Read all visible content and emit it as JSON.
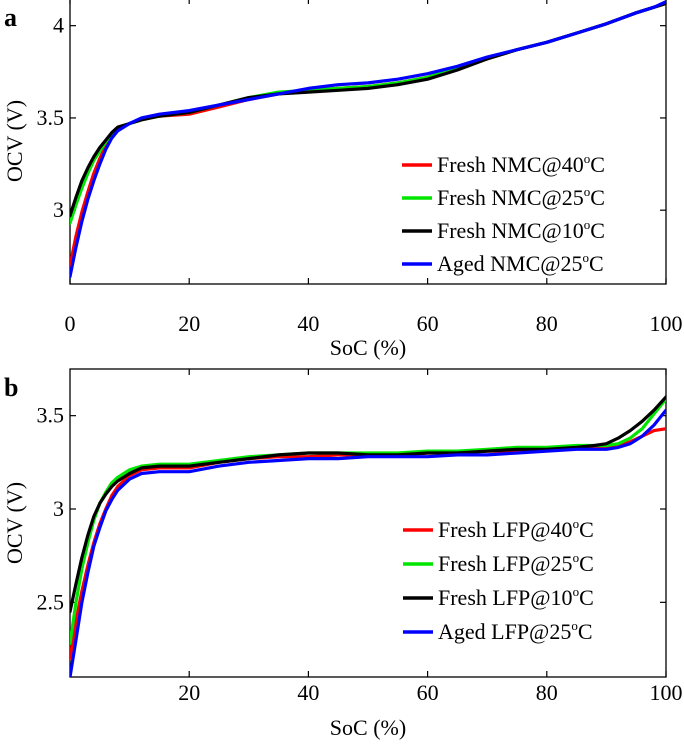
{
  "chart_data": [
    {
      "type": "line",
      "panel_label": "a",
      "xlabel": "SoC (%)",
      "ylabel": "OCV (V)",
      "xlim": [
        0,
        100
      ],
      "ylim": [
        2.6,
        4.15
      ],
      "xticks": [
        0,
        20,
        40,
        60,
        80,
        100
      ],
      "yticks": [
        3,
        3.5,
        4
      ],
      "xtick_labels": [
        "0",
        "20",
        "40",
        "60",
        "80",
        "100"
      ],
      "ytick_labels": [
        "3",
        "3.5",
        "4"
      ],
      "grid": false,
      "legend_position": "bottom-right",
      "series": [
        {
          "name": "Fresh NMC@40°C",
          "name_base": "Fresh NMC@40",
          "name_sup": "o",
          "name_tail": "C",
          "color": "#ff0000",
          "x": [
            0,
            1,
            2,
            3,
            4,
            5,
            6,
            7,
            8,
            10,
            12,
            15,
            20,
            25,
            30,
            35,
            40,
            45,
            50,
            55,
            60,
            65,
            70,
            75,
            80,
            85,
            90,
            95,
            98,
            100
          ],
          "y": [
            2.7,
            2.86,
            2.99,
            3.1,
            3.2,
            3.28,
            3.35,
            3.4,
            3.44,
            3.47,
            3.49,
            3.51,
            3.52,
            3.56,
            3.6,
            3.63,
            3.65,
            3.66,
            3.67,
            3.69,
            3.72,
            3.77,
            3.82,
            3.87,
            3.91,
            3.96,
            4.01,
            4.07,
            4.1,
            4.12
          ]
        },
        {
          "name": "Fresh NMC@25°C",
          "name_base": "Fresh NMC@25",
          "name_sup": "o",
          "name_tail": "C",
          "color": "#00e600",
          "x": [
            0,
            1,
            2,
            3,
            4,
            5,
            6,
            7,
            8,
            10,
            12,
            15,
            20,
            25,
            30,
            35,
            40,
            45,
            50,
            55,
            60,
            65,
            70,
            75,
            80,
            85,
            90,
            95,
            98,
            100
          ],
          "y": [
            2.93,
            3.03,
            3.12,
            3.2,
            3.27,
            3.32,
            3.37,
            3.41,
            3.44,
            3.47,
            3.49,
            3.51,
            3.53,
            3.57,
            3.61,
            3.64,
            3.65,
            3.66,
            3.67,
            3.69,
            3.72,
            3.77,
            3.82,
            3.87,
            3.91,
            3.96,
            4.01,
            4.07,
            4.1,
            4.12
          ]
        },
        {
          "name": "Fresh NMC@10°C",
          "name_base": "Fresh NMC@10",
          "name_sup": "o",
          "name_tail": "C",
          "color": "#000000",
          "x": [
            0,
            1,
            2,
            3,
            4,
            5,
            6,
            7,
            8,
            10,
            12,
            15,
            20,
            25,
            30,
            35,
            40,
            45,
            50,
            55,
            60,
            65,
            70,
            75,
            80,
            85,
            90,
            95,
            98,
            100
          ],
          "y": [
            2.97,
            3.07,
            3.16,
            3.23,
            3.29,
            3.34,
            3.38,
            3.42,
            3.45,
            3.47,
            3.49,
            3.51,
            3.53,
            3.57,
            3.61,
            3.63,
            3.64,
            3.65,
            3.66,
            3.68,
            3.71,
            3.76,
            3.82,
            3.87,
            3.91,
            3.96,
            4.01,
            4.07,
            4.1,
            4.12
          ]
        },
        {
          "name": "Aged NMC@25°C",
          "name_base": "Aged NMC@25",
          "name_sup": "o",
          "name_tail": "C",
          "color": "#0000ff",
          "x": [
            0,
            1,
            2,
            3,
            4,
            5,
            6,
            7,
            8,
            10,
            12,
            15,
            20,
            25,
            30,
            35,
            40,
            45,
            50,
            55,
            60,
            65,
            70,
            75,
            80,
            85,
            90,
            95,
            98,
            100
          ],
          "y": [
            2.64,
            2.8,
            2.94,
            3.06,
            3.16,
            3.25,
            3.33,
            3.39,
            3.43,
            3.47,
            3.5,
            3.52,
            3.54,
            3.57,
            3.6,
            3.63,
            3.66,
            3.68,
            3.69,
            3.71,
            3.74,
            3.78,
            3.83,
            3.87,
            3.91,
            3.96,
            4.01,
            4.07,
            4.1,
            4.13
          ]
        }
      ]
    },
    {
      "type": "line",
      "panel_label": "b",
      "xlabel": "SoC (%)",
      "ylabel": "OCV (V)",
      "xlim": [
        0,
        100
      ],
      "ylim": [
        2.1,
        3.75
      ],
      "xticks": [
        20,
        40,
        60,
        80,
        100
      ],
      "yticks": [
        2.5,
        3,
        3.5
      ],
      "xtick_labels": [
        "20",
        "40",
        "60",
        "80",
        "100"
      ],
      "ytick_labels": [
        "2.5",
        "3",
        "3.5"
      ],
      "grid": false,
      "legend_position": "bottom-right",
      "series": [
        {
          "name": "Fresh LFP@40°C",
          "name_base": "Fresh LFP@40",
          "name_sup": "o",
          "name_tail": "C",
          "color": "#ff0000",
          "x": [
            0,
            1,
            2,
            3,
            4,
            5,
            6,
            7,
            8,
            10,
            12,
            15,
            20,
            25,
            30,
            35,
            40,
            45,
            50,
            55,
            60,
            65,
            70,
            75,
            80,
            85,
            88,
            90,
            92,
            94,
            96,
            98,
            100
          ],
          "y": [
            2.2,
            2.4,
            2.56,
            2.7,
            2.82,
            2.92,
            3.0,
            3.07,
            3.12,
            3.18,
            3.21,
            3.22,
            3.22,
            3.25,
            3.27,
            3.28,
            3.28,
            3.29,
            3.29,
            3.29,
            3.3,
            3.3,
            3.31,
            3.31,
            3.32,
            3.33,
            3.33,
            3.33,
            3.34,
            3.36,
            3.39,
            3.42,
            3.43
          ]
        },
        {
          "name": "Fresh LFP@25°C",
          "name_base": "Fresh LFP@25",
          "name_sup": "o",
          "name_tail": "C",
          "color": "#00e600",
          "x": [
            0,
            1,
            2,
            3,
            4,
            5,
            6,
            7,
            8,
            10,
            12,
            15,
            20,
            25,
            30,
            35,
            40,
            45,
            50,
            55,
            60,
            65,
            70,
            75,
            80,
            85,
            88,
            90,
            92,
            94,
            96,
            98,
            100
          ],
          "y": [
            2.28,
            2.5,
            2.68,
            2.82,
            2.94,
            3.03,
            3.09,
            3.14,
            3.17,
            3.21,
            3.23,
            3.24,
            3.24,
            3.26,
            3.28,
            3.29,
            3.3,
            3.3,
            3.3,
            3.3,
            3.31,
            3.31,
            3.32,
            3.33,
            3.33,
            3.34,
            3.34,
            3.34,
            3.35,
            3.38,
            3.43,
            3.51,
            3.59
          ]
        },
        {
          "name": "Fresh LFP@10°C",
          "name_base": "Fresh LFP@10",
          "name_sup": "o",
          "name_tail": "C",
          "color": "#000000",
          "x": [
            0,
            1,
            2,
            3,
            4,
            5,
            6,
            7,
            8,
            10,
            12,
            15,
            20,
            25,
            30,
            35,
            40,
            45,
            50,
            55,
            60,
            65,
            70,
            75,
            80,
            85,
            88,
            90,
            92,
            94,
            96,
            98,
            100
          ],
          "y": [
            2.45,
            2.6,
            2.74,
            2.86,
            2.96,
            3.03,
            3.08,
            3.12,
            3.15,
            3.19,
            3.22,
            3.23,
            3.23,
            3.25,
            3.27,
            3.29,
            3.3,
            3.3,
            3.29,
            3.29,
            3.3,
            3.3,
            3.31,
            3.32,
            3.32,
            3.33,
            3.34,
            3.35,
            3.38,
            3.42,
            3.47,
            3.53,
            3.6
          ]
        },
        {
          "name": "Aged LFP@25°C",
          "name_base": "Aged LFP@25",
          "name_sup": "o",
          "name_tail": "C",
          "color": "#0000ff",
          "x": [
            0,
            1,
            2,
            3,
            4,
            5,
            6,
            7,
            8,
            10,
            12,
            15,
            20,
            25,
            30,
            35,
            40,
            45,
            50,
            55,
            60,
            65,
            70,
            75,
            80,
            85,
            88,
            90,
            92,
            94,
            96,
            98,
            100
          ],
          "y": [
            2.1,
            2.3,
            2.5,
            2.66,
            2.8,
            2.9,
            2.99,
            3.05,
            3.1,
            3.16,
            3.19,
            3.2,
            3.2,
            3.23,
            3.25,
            3.26,
            3.27,
            3.27,
            3.28,
            3.28,
            3.28,
            3.29,
            3.29,
            3.3,
            3.31,
            3.32,
            3.32,
            3.32,
            3.33,
            3.35,
            3.39,
            3.45,
            3.53
          ]
        }
      ]
    }
  ]
}
